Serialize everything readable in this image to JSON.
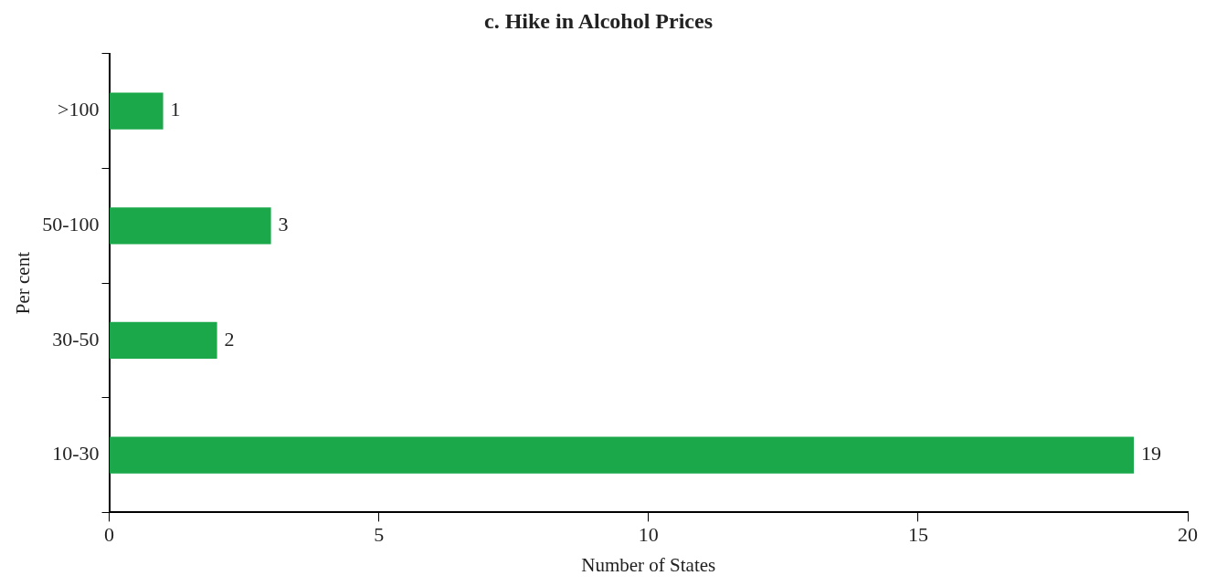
{
  "chart_data": {
    "type": "bar",
    "orientation": "horizontal",
    "title": "c. Hike in Alcohol Prices",
    "xlabel": "Number of States",
    "ylabel": "Per cent",
    "categories": [
      ">100",
      "50-100",
      "30-50",
      "10-30"
    ],
    "values": [
      1,
      3,
      2,
      19
    ],
    "color": "#1aa84b",
    "xlim": [
      0,
      20
    ],
    "xticks": [
      0,
      5,
      10,
      15,
      20
    ],
    "grid": false,
    "legend": false,
    "data_labels": true
  }
}
